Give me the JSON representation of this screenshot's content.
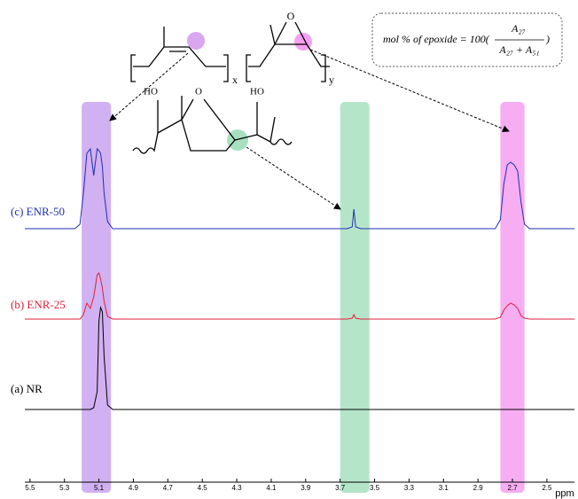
{
  "chart_data": {
    "type": "line",
    "xlabel": "ppm",
    "xlim": [
      5.53,
      2.34
    ],
    "xticks": [
      5.5,
      5.3,
      5.1,
      4.9,
      4.7,
      4.5,
      4.3,
      4.1,
      3.9,
      3.7,
      3.5,
      3.3,
      3.1,
      2.9,
      2.7,
      2.5
    ],
    "ylim": [
      0,
      120
    ],
    "x": [
      5.53,
      5.24,
      5.21,
      5.19,
      5.17,
      5.15,
      5.13,
      5.11,
      5.1,
      5.09,
      5.08,
      5.07,
      5.05,
      5.02,
      3.66,
      3.63,
      3.62,
      3.61,
      3.58,
      2.8,
      2.77,
      2.75,
      2.73,
      2.71,
      2.69,
      2.67,
      2.65,
      2.63,
      2.6,
      2.34
    ],
    "series": [
      {
        "name": "(c) ENR-50",
        "color": "#1f2fb0",
        "values": [
          0,
          0,
          5,
          40,
          85,
          90,
          60,
          90,
          88,
          85,
          70,
          40,
          8,
          0,
          0,
          2,
          22,
          2,
          0,
          0,
          10,
          50,
          72,
          75,
          72,
          65,
          30,
          5,
          0,
          0
        ]
      },
      {
        "name": "(b) ENR-25",
        "color": "#e0203a",
        "values": [
          0,
          0,
          0,
          5,
          18,
          12,
          25,
          50,
          52,
          45,
          35,
          20,
          3,
          0,
          0,
          1,
          5,
          1,
          0,
          0,
          2,
          10,
          15,
          18,
          16,
          12,
          4,
          1,
          0,
          0
        ]
      },
      {
        "name": "(a) NR",
        "color": "#000000",
        "values": [
          0,
          0,
          0,
          0,
          0,
          0,
          2,
          20,
          100,
          115,
          110,
          60,
          5,
          0,
          0,
          0,
          0,
          0,
          0,
          0,
          0,
          0,
          0,
          0,
          0,
          0,
          0,
          0,
          0,
          0
        ]
      }
    ],
    "highlights": [
      {
        "xlim": [
          5.2,
          5.03
        ],
        "color": "#c9a3ef"
      },
      {
        "xlim": [
          3.7,
          3.53
        ],
        "color": "#a8e0bf"
      },
      {
        "xlim": [
          2.77,
          2.63
        ],
        "color": "#f49ff0"
      }
    ],
    "structure": {
      "epoxide_o": "O",
      "sub_x": "x",
      "sub_y": "y",
      "ho_left": "HO",
      "ring_o": "O",
      "ho_right": "HO"
    },
    "equation": {
      "prefix": "mol % of epoxide = 100(",
      "numerator": "A₂₇",
      "denominator": "A₂₇ + A₅₁",
      "suffix": ")"
    }
  }
}
